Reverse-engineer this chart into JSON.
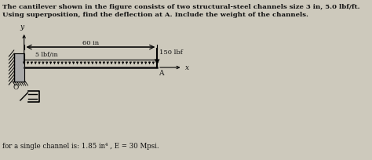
{
  "title_line1": "The cantilever shown in the figure consists of two structural-steel channels size 3 in, 5.0 lbf/ft.",
  "title_line2": "Using superposition, find the deflection at A. Include the weight of the channels.",
  "footer": "for a single channel is: 1.85 in⁴ , E = 30 Mpsi.",
  "dim_label": "60 in",
  "load_label": "150 lbf",
  "dist_load_label": "5 lbf/in",
  "label_O": "O",
  "label_A": "A",
  "label_x": "x",
  "label_y": "y",
  "bg_color": "#cdc9bc",
  "text_color": "#111111",
  "beam_color": "#111111"
}
